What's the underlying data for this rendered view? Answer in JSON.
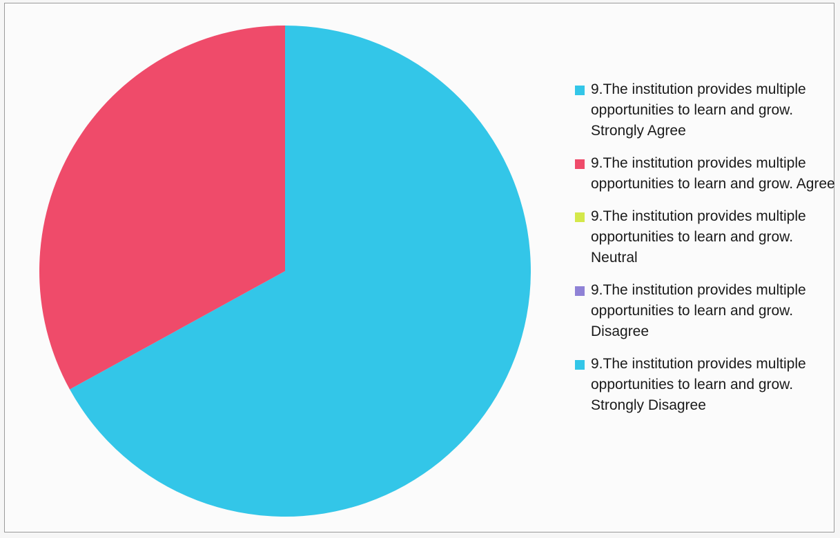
{
  "chart_data": {
    "type": "pie",
    "legend_position": "right",
    "slices": [
      {
        "label": "9.The institution provides multiple opportunities to learn and grow. Strongly Agree",
        "value": 67,
        "color": "#33c6e8"
      },
      {
        "label": "9.The institution provides multiple opportunities to learn and grow. Agree",
        "value": 33,
        "color": "#ef4b6a"
      },
      {
        "label": "9.The institution provides multiple opportunities to learn and grow. Neutral",
        "value": 0,
        "color": "#d4e84a"
      },
      {
        "label": "9.The institution provides multiple opportunities to learn and grow. Disagree",
        "value": 0,
        "color": "#8f82d6"
      },
      {
        "label": "9.The institution provides multiple opportunities to learn and grow. Strongly Disagree",
        "value": 0,
        "color": "#33c6e8"
      }
    ]
  }
}
